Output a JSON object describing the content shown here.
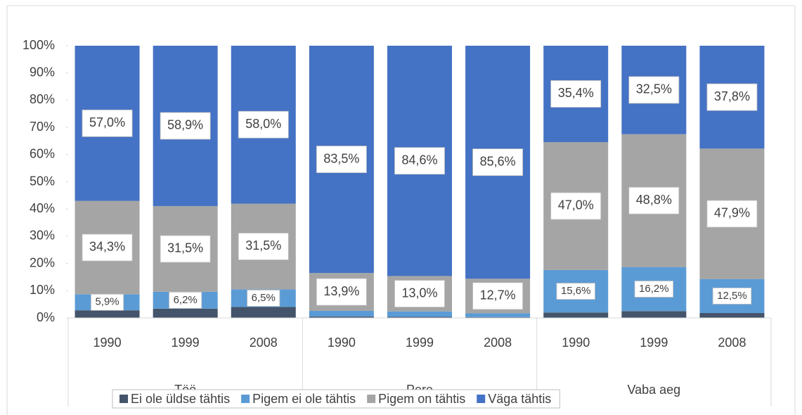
{
  "chart_data": {
    "type": "stacked-bar",
    "categories": [
      "1990",
      "1999",
      "2008",
      "1990",
      "1999",
      "2008",
      "1990",
      "1999",
      "2008"
    ],
    "groups": [
      "Töö",
      "Pere",
      "Vaba aeg"
    ],
    "ylim": [
      0,
      100
    ],
    "yticks": [
      {
        "value": 0,
        "label": "0%"
      },
      {
        "value": 10,
        "label": "10%"
      },
      {
        "value": 20,
        "label": "20%"
      },
      {
        "value": 30,
        "label": "30%"
      },
      {
        "value": 40,
        "label": "40%"
      },
      {
        "value": 50,
        "label": "50%"
      },
      {
        "value": 60,
        "label": "60%"
      },
      {
        "value": 70,
        "label": "70%"
      },
      {
        "value": 80,
        "label": "80%"
      },
      {
        "value": 90,
        "label": "90%"
      },
      {
        "value": 100,
        "label": "100%"
      }
    ],
    "series": [
      {
        "name": "Ei ole üldse tähtis",
        "color": "#44546a",
        "values": [
          2.8,
          3.4,
          4.0,
          0.5,
          0.4,
          0.3,
          2.0,
          2.5,
          1.8
        ]
      },
      {
        "name": "Pigem ei ole tähtis",
        "color": "#5b9bd5",
        "values": [
          5.9,
          6.2,
          6.5,
          2.1,
          2.0,
          1.4,
          15.6,
          16.2,
          12.5
        ],
        "value_labels": [
          "5,9%",
          "6,2%",
          "6,5%",
          null,
          null,
          null,
          "15,6%",
          "16,2%",
          "12,5%"
        ]
      },
      {
        "name": "Pigem on tähtis",
        "color": "#a5a5a5",
        "values": [
          34.3,
          31.5,
          31.5,
          13.9,
          13.0,
          12.7,
          47.0,
          48.8,
          47.9
        ],
        "value_labels": [
          "34,3%",
          "31,5%",
          "31,5%",
          "13,9%",
          "13,0%",
          "12,7%",
          "47,0%",
          "48,8%",
          "47,9%"
        ]
      },
      {
        "name": "Väga tähtis",
        "color": "#4472c4",
        "values": [
          57.0,
          58.9,
          58.0,
          83.5,
          84.6,
          85.6,
          35.4,
          32.5,
          37.8
        ],
        "value_labels": [
          "57,0%",
          "58,9%",
          "58,0%",
          "83,5%",
          "84,6%",
          "85,6%",
          "35,4%",
          "32,5%",
          "37,8%"
        ]
      }
    ],
    "legend": "bottom"
  }
}
